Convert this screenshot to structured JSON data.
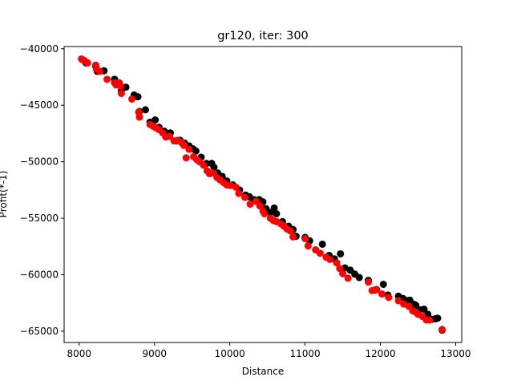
{
  "chart_data": {
    "type": "scatter",
    "title": "gr120, iter: 300",
    "xlabel": "Distance",
    "ylabel": "Profit(*-1)",
    "xlim": [
      7800,
      13080
    ],
    "ylim": [
      -66000,
      -39800
    ],
    "xticks": [
      8000,
      9000,
      10000,
      11000,
      12000,
      13000
    ],
    "xtick_labels": [
      "8000",
      "9000",
      "10000",
      "11000",
      "12000",
      "13000"
    ],
    "yticks": [
      -40000,
      -45000,
      -50000,
      -55000,
      -60000,
      -65000
    ],
    "ytick_labels": [
      "−40000",
      "−45000",
      "−50000",
      "−55000",
      "−60000",
      "−65000"
    ],
    "grid": false,
    "series": [
      {
        "color": "#000000",
        "points": [
          [
            8040,
            -40950
          ],
          [
            8090,
            -41250
          ],
          [
            8220,
            -41550
          ],
          [
            8240,
            -42000
          ],
          [
            8330,
            -41950
          ],
          [
            8470,
            -42700
          ],
          [
            8500,
            -43050
          ],
          [
            8530,
            -43200
          ],
          [
            8560,
            -43700
          ],
          [
            8620,
            -43400
          ],
          [
            8730,
            -44100
          ],
          [
            8780,
            -44250
          ],
          [
            8800,
            -45550
          ],
          [
            8880,
            -45400
          ],
          [
            8940,
            -46500
          ],
          [
            9010,
            -46300
          ],
          [
            9060,
            -46950
          ],
          [
            9130,
            -47300
          ],
          [
            9170,
            -47600
          ],
          [
            9210,
            -47450
          ],
          [
            9290,
            -48150
          ],
          [
            9340,
            -48100
          ],
          [
            9400,
            -48350
          ],
          [
            9460,
            -48600
          ],
          [
            9510,
            -48850
          ],
          [
            9550,
            -49050
          ],
          [
            9620,
            -49600
          ],
          [
            9690,
            -50150
          ],
          [
            9760,
            -50150
          ],
          [
            9790,
            -50500
          ],
          [
            9840,
            -51000
          ],
          [
            9900,
            -51300
          ],
          [
            9960,
            -51700
          ],
          [
            10040,
            -52050
          ],
          [
            10130,
            -52500
          ],
          [
            10210,
            -52950
          ],
          [
            10260,
            -53100
          ],
          [
            10320,
            -53350
          ],
          [
            10390,
            -53350
          ],
          [
            10440,
            -53550
          ],
          [
            10480,
            -54150
          ],
          [
            10540,
            -54500
          ],
          [
            10590,
            -54100
          ],
          [
            10620,
            -54600
          ],
          [
            10700,
            -55300
          ],
          [
            10780,
            -55700
          ],
          [
            10840,
            -56000
          ],
          [
            10880,
            -56600
          ],
          [
            11000,
            -56700
          ],
          [
            11060,
            -57000
          ],
          [
            11230,
            -57300
          ],
          [
            11320,
            -58300
          ],
          [
            11390,
            -58600
          ],
          [
            11470,
            -58150
          ],
          [
            11530,
            -59400
          ],
          [
            11600,
            -59600
          ],
          [
            11660,
            -59950
          ],
          [
            11720,
            -60250
          ],
          [
            11840,
            -60500
          ],
          [
            11930,
            -61350
          ],
          [
            12040,
            -60850
          ],
          [
            12100,
            -61800
          ],
          [
            12240,
            -61900
          ],
          [
            12300,
            -62100
          ],
          [
            12350,
            -62300
          ],
          [
            12390,
            -62250
          ],
          [
            12440,
            -62600
          ],
          [
            12470,
            -62700
          ],
          [
            12520,
            -63100
          ],
          [
            12580,
            -63050
          ],
          [
            12630,
            -63500
          ],
          [
            12680,
            -63950
          ],
          [
            12730,
            -63900
          ],
          [
            12760,
            -63850
          ],
          [
            12820,
            -64900
          ]
        ]
      },
      {
        "color": "#ff0000",
        "points": [
          [
            8030,
            -40900
          ],
          [
            8070,
            -41050
          ],
          [
            8110,
            -41250
          ],
          [
            8220,
            -41450
          ],
          [
            8230,
            -41800
          ],
          [
            8270,
            -42000
          ],
          [
            8370,
            -42700
          ],
          [
            8470,
            -43000
          ],
          [
            8490,
            -43200
          ],
          [
            8530,
            -43000
          ],
          [
            8550,
            -43300
          ],
          [
            8560,
            -43950
          ],
          [
            8700,
            -44450
          ],
          [
            8790,
            -45600
          ],
          [
            8800,
            -46050
          ],
          [
            8940,
            -46700
          ],
          [
            8980,
            -46850
          ],
          [
            9020,
            -47000
          ],
          [
            9060,
            -47150
          ],
          [
            9110,
            -47450
          ],
          [
            9150,
            -47800
          ],
          [
            9200,
            -47750
          ],
          [
            9260,
            -48150
          ],
          [
            9310,
            -48100
          ],
          [
            9360,
            -48300
          ],
          [
            9390,
            -48550
          ],
          [
            9420,
            -49650
          ],
          [
            9460,
            -48900
          ],
          [
            9520,
            -49550
          ],
          [
            9560,
            -49800
          ],
          [
            9600,
            -50000
          ],
          [
            9650,
            -50300
          ],
          [
            9700,
            -50800
          ],
          [
            9730,
            -51050
          ],
          [
            9780,
            -51000
          ],
          [
            9830,
            -51400
          ],
          [
            9870,
            -51600
          ],
          [
            9920,
            -51850
          ],
          [
            9960,
            -52050
          ],
          [
            10010,
            -52100
          ],
          [
            10080,
            -52250
          ],
          [
            10120,
            -52800
          ],
          [
            10200,
            -53150
          ],
          [
            10270,
            -53750
          ],
          [
            10350,
            -53500
          ],
          [
            10400,
            -53900
          ],
          [
            10440,
            -54350
          ],
          [
            10460,
            -54600
          ],
          [
            10540,
            -55000
          ],
          [
            10580,
            -55200
          ],
          [
            10620,
            -55300
          ],
          [
            10680,
            -55500
          ],
          [
            10720,
            -55700
          ],
          [
            10760,
            -55950
          ],
          [
            10800,
            -56100
          ],
          [
            10840,
            -56650
          ],
          [
            11000,
            -56800
          ],
          [
            11040,
            -57450
          ],
          [
            11140,
            -57800
          ],
          [
            11200,
            -58100
          ],
          [
            11280,
            -58450
          ],
          [
            11330,
            -58650
          ],
          [
            11420,
            -58950
          ],
          [
            11460,
            -59450
          ],
          [
            11500,
            -59900
          ],
          [
            11570,
            -60300
          ],
          [
            11840,
            -60650
          ],
          [
            11890,
            -61400
          ],
          [
            11950,
            -61300
          ],
          [
            12020,
            -61700
          ],
          [
            12110,
            -62000
          ],
          [
            12240,
            -62300
          ],
          [
            12310,
            -62600
          ],
          [
            12380,
            -62800
          ],
          [
            12430,
            -63200
          ],
          [
            12470,
            -63300
          ],
          [
            12500,
            -63500
          ],
          [
            12560,
            -63700
          ],
          [
            12610,
            -64000
          ],
          [
            12650,
            -64000
          ],
          [
            12820,
            -64850
          ]
        ]
      }
    ]
  }
}
